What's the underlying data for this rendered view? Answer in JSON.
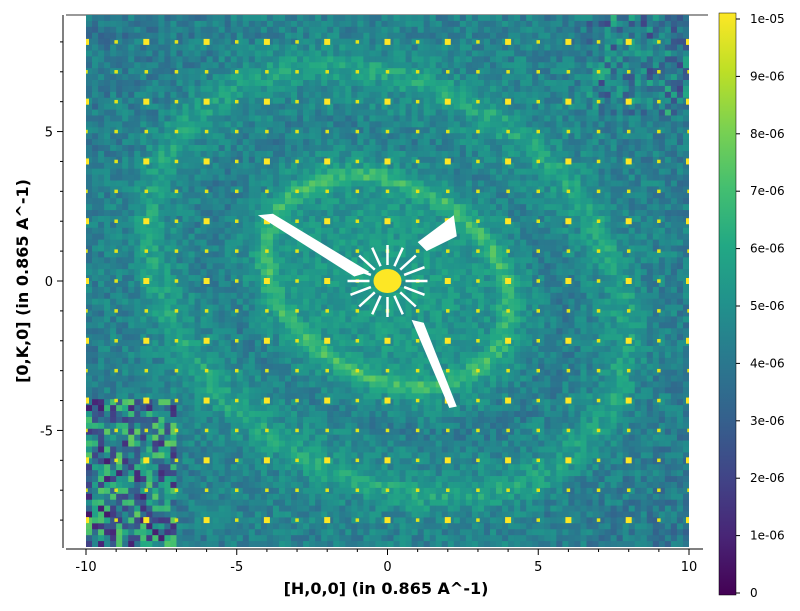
{
  "chart_data": {
    "type": "heatmap",
    "title": "",
    "xlabel": "[H,0,0] (in 0.865 A^-1)",
    "ylabel": "[0,K,0] (in 0.865 A^-1)",
    "xlim": [
      -10,
      10
    ],
    "ylim": [
      -8.9,
      8.9
    ],
    "x_ticks": [
      -10,
      -5,
      0,
      5,
      10
    ],
    "x_tick_labels": [
      "-10",
      "-5",
      "0",
      "5",
      "10"
    ],
    "y_ticks": [
      -5,
      0,
      5
    ],
    "y_tick_labels": [
      "-5",
      "0",
      "5"
    ],
    "grid": false,
    "colormap": "viridis",
    "colorbar": {
      "min": 0,
      "max": 1e-05,
      "ticks": [
        0,
        1e-06,
        2e-06,
        3e-06,
        4e-06,
        5e-06,
        6e-06,
        7e-06,
        8e-06,
        9e-06,
        1e-05
      ],
      "tick_labels": [
        "0",
        "1e-06",
        "2e-06",
        "3e-06",
        "4e-06",
        "5e-06",
        "6e-06",
        "7e-06",
        "8e-06",
        "9e-06",
        "1e-05"
      ]
    },
    "peak_lattice": {
      "h_range": [
        -10,
        10
      ],
      "k_range": [
        -8,
        8
      ],
      "step": 1,
      "strong_every": 2
    },
    "masked_regions": [
      {
        "name": "streak-upper-left",
        "points": [
          [
            -4.3,
            2.2
          ],
          [
            -3.8,
            2.25
          ],
          [
            -0.6,
            0.3
          ],
          [
            -1.1,
            0.15
          ]
        ]
      },
      {
        "name": "streak-upper-right",
        "points": [
          [
            1.0,
            1.3
          ],
          [
            2.2,
            2.2
          ],
          [
            2.3,
            1.5
          ],
          [
            1.3,
            1.0
          ]
        ]
      },
      {
        "name": "streak-lower-right",
        "points": [
          [
            0.8,
            -1.3
          ],
          [
            1.2,
            -1.4
          ],
          [
            2.3,
            -4.2
          ],
          [
            2.05,
            -4.25
          ]
        ]
      }
    ]
  }
}
